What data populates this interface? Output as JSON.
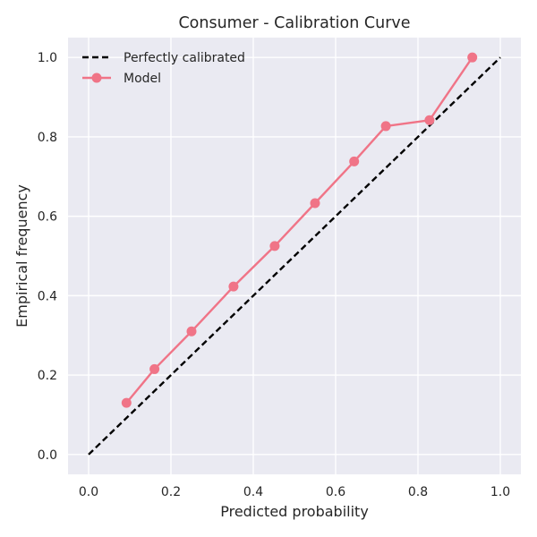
{
  "chart_data": {
    "type": "line",
    "title": "Consumer - Calibration Curve",
    "xlabel": "Predicted probability",
    "ylabel": "Empirical frequency",
    "xlim": [
      -0.05,
      1.05
    ],
    "ylim": [
      -0.05,
      1.05
    ],
    "xticks": [
      "0.0",
      "0.2",
      "0.4",
      "0.6",
      "0.8",
      "1.0"
    ],
    "yticks": [
      "0.0",
      "0.2",
      "0.4",
      "0.6",
      "0.8",
      "1.0"
    ],
    "grid": true,
    "legend_position": "top-left",
    "series": [
      {
        "name": "Perfectly calibrated",
        "style": "dashed",
        "color": "#000000",
        "x": [
          0.0,
          1.0
        ],
        "y": [
          0.0,
          1.0
        ]
      },
      {
        "name": "Model",
        "style": "solid-with-markers",
        "color": "#f07487",
        "x": [
          0.092,
          0.16,
          0.25,
          0.352,
          0.452,
          0.55,
          0.645,
          0.722,
          0.828,
          0.932
        ],
        "y": [
          0.13,
          0.215,
          0.31,
          0.423,
          0.525,
          0.633,
          0.738,
          0.827,
          0.842,
          1.0
        ]
      }
    ]
  }
}
